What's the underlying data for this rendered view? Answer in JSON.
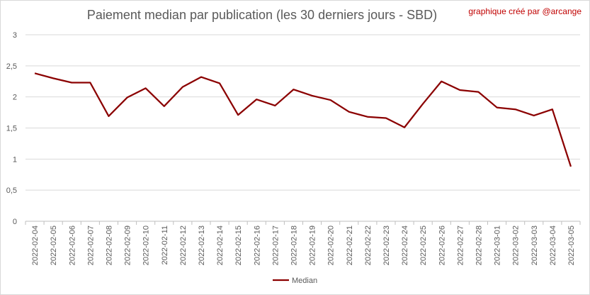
{
  "title": "Paiement median par publication (les 30 derniers jours - SBD)",
  "credit": "graphique créé par @arcange",
  "chart_data": {
    "type": "line",
    "title": "Paiement median par publication (les 30 derniers jours - SBD)",
    "xlabel": "",
    "ylabel": "",
    "ylim": [
      0,
      3
    ],
    "yticks": [
      "0",
      "0,5",
      "1",
      "1,5",
      "2",
      "2,5",
      "3"
    ],
    "grid": true,
    "legend_position": "bottom",
    "categories": [
      "2022-02-04",
      "2022-02-05",
      "2022-02-06",
      "2022-02-07",
      "2022-02-08",
      "2022-02-09",
      "2022-02-10",
      "2022-02-11",
      "2022-02-12",
      "2022-02-13",
      "2022-02-14",
      "2022-02-15",
      "2022-02-16",
      "2022-02-17",
      "2022-02-18",
      "2022-02-19",
      "2022-02-20",
      "2022-02-21",
      "2022-02-22",
      "2022-02-23",
      "2022-02-24",
      "2022-02-25",
      "2022-02-26",
      "2022-02-27",
      "2022-02-28",
      "2022-03-01",
      "2022-03-02",
      "2022-03-03",
      "2022-03-04",
      "2022-03-05"
    ],
    "series": [
      {
        "name": "Median",
        "color": "#8b0000",
        "values": [
          2.38,
          2.3,
          2.23,
          2.23,
          1.69,
          1.99,
          2.14,
          1.85,
          2.16,
          2.32,
          2.22,
          1.71,
          1.96,
          1.86,
          2.12,
          2.02,
          1.95,
          1.76,
          1.68,
          1.66,
          1.51,
          1.89,
          2.25,
          2.11,
          2.08,
          1.83,
          1.8,
          1.7,
          1.8,
          0.88
        ]
      }
    ]
  }
}
